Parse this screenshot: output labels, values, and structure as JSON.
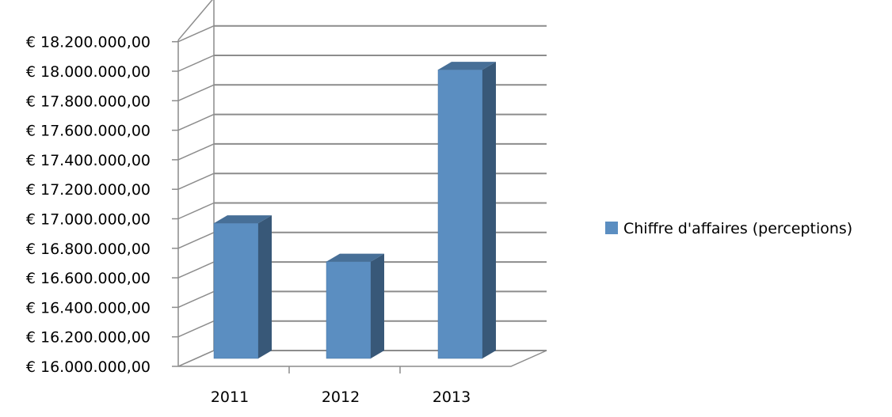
{
  "chart_data": {
    "type": "bar",
    "categories": [
      "2011",
      "2012",
      "2013"
    ],
    "series": [
      {
        "name": "Chiffre d'affaires (perceptions)",
        "values": [
          16970000,
          16710000,
          18010000
        ],
        "color": "#5b8ec1"
      }
    ],
    "ylim": [
      16000000,
      18200000
    ],
    "yticks": [
      "€ 16.000.000,00",
      "€ 16.200.000,00",
      "€ 16.400.000,00",
      "€ 16.600.000,00",
      "€ 16.800.000,00",
      "€ 17.000.000,00",
      "€ 17.200.000,00",
      "€ 17.400.000,00",
      "€ 17.600.000,00",
      "€ 17.800.000,00",
      "€ 18.000.000,00",
      "€ 18.200.000,00"
    ],
    "grid": true,
    "legend": "right",
    "style": "3d-column"
  }
}
